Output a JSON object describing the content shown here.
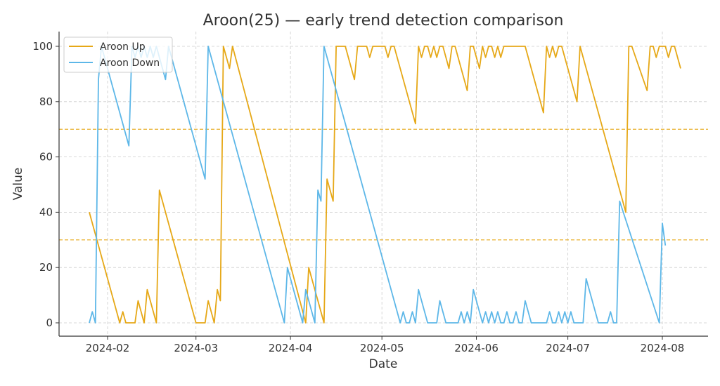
{
  "chart_data": {
    "type": "line",
    "title": "Aroon(25) — early trend detection comparison",
    "xlabel": "Date",
    "ylabel": "Value",
    "ylim": [
      -5,
      105
    ],
    "yticks": [
      0,
      20,
      40,
      60,
      80,
      100
    ],
    "xticks": [
      "2024-02",
      "2024-03",
      "2024-04",
      "2024-05",
      "2024-06",
      "2024-07",
      "2024-08"
    ],
    "xtick_days": [
      31,
      60,
      91,
      121,
      152,
      182,
      213
    ],
    "xlim_days": [
      16,
      229
    ],
    "grid": true,
    "legend_position": "upper left",
    "reference_lines": [
      {
        "y": 70,
        "color": "#E6A817",
        "style": "dashed"
      },
      {
        "y": 30,
        "color": "#E6A817",
        "style": "dashed"
      }
    ],
    "x_unit": "day of year 2024 (0 = 2024-01-01)",
    "series": [
      {
        "name": "Aroon Up",
        "color": "#E6A817",
        "points": [
          [
            25,
            40
          ],
          [
            35,
            0
          ],
          [
            36,
            4
          ],
          [
            37,
            0
          ],
          [
            40,
            0
          ],
          [
            41,
            8
          ],
          [
            43,
            0
          ],
          [
            44,
            12
          ],
          [
            47,
            0
          ],
          [
            48,
            48
          ],
          [
            60,
            0
          ],
          [
            63,
            0
          ],
          [
            64,
            8
          ],
          [
            66,
            0
          ],
          [
            67,
            12
          ],
          [
            68,
            8
          ],
          [
            69,
            100
          ],
          [
            71,
            92
          ],
          [
            72,
            100
          ],
          [
            96,
            0
          ],
          [
            97,
            20
          ],
          [
            102,
            0
          ],
          [
            103,
            52
          ],
          [
            105,
            44
          ],
          [
            106,
            100
          ],
          [
            109,
            100
          ],
          [
            112,
            88
          ],
          [
            113,
            100
          ],
          [
            116,
            100
          ],
          [
            117,
            96
          ],
          [
            118,
            100
          ],
          [
            122,
            100
          ],
          [
            123,
            96
          ],
          [
            124,
            100
          ],
          [
            125,
            100
          ],
          [
            132,
            72
          ],
          [
            133,
            100
          ],
          [
            134,
            96
          ],
          [
            135,
            100
          ],
          [
            136,
            100
          ],
          [
            137,
            96
          ],
          [
            138,
            100
          ],
          [
            139,
            96
          ],
          [
            140,
            100
          ],
          [
            141,
            100
          ],
          [
            143,
            92
          ],
          [
            144,
            100
          ],
          [
            145,
            100
          ],
          [
            149,
            84
          ],
          [
            150,
            100
          ],
          [
            151,
            100
          ],
          [
            153,
            92
          ],
          [
            154,
            100
          ],
          [
            155,
            96
          ],
          [
            156,
            100
          ],
          [
            157,
            100
          ],
          [
            158,
            96
          ],
          [
            159,
            100
          ],
          [
            160,
            96
          ],
          [
            161,
            100
          ],
          [
            168,
            100
          ],
          [
            174,
            76
          ],
          [
            175,
            100
          ],
          [
            176,
            96
          ],
          [
            177,
            100
          ],
          [
            178,
            96
          ],
          [
            179,
            100
          ],
          [
            180,
            100
          ],
          [
            185,
            80
          ],
          [
            186,
            100
          ],
          [
            201,
            40
          ],
          [
            202,
            100
          ],
          [
            203,
            100
          ],
          [
            208,
            84
          ],
          [
            209,
            100
          ],
          [
            210,
            100
          ],
          [
            211,
            96
          ],
          [
            212,
            100
          ],
          [
            214,
            100
          ],
          [
            215,
            96
          ],
          [
            216,
            100
          ],
          [
            217,
            100
          ],
          [
            219,
            92
          ]
        ]
      },
      {
        "name": "Aroon Down",
        "color": "#5DB7E8",
        "points": [
          [
            25,
            0
          ],
          [
            26,
            4
          ],
          [
            27,
            0
          ],
          [
            28,
            88
          ],
          [
            29,
            100
          ],
          [
            38,
            64
          ],
          [
            39,
            100
          ],
          [
            40,
            96
          ],
          [
            41,
            100
          ],
          [
            42,
            96
          ],
          [
            43,
            100
          ],
          [
            44,
            96
          ],
          [
            45,
            100
          ],
          [
            46,
            96
          ],
          [
            47,
            100
          ],
          [
            48,
            96
          ],
          [
            50,
            88
          ],
          [
            51,
            100
          ],
          [
            63,
            52
          ],
          [
            64,
            100
          ],
          [
            89,
            0
          ],
          [
            90,
            20
          ],
          [
            95,
            0
          ],
          [
            96,
            12
          ],
          [
            99,
            0
          ],
          [
            100,
            48
          ],
          [
            101,
            44
          ],
          [
            102,
            100
          ],
          [
            127,
            0
          ],
          [
            128,
            4
          ],
          [
            129,
            0
          ],
          [
            130,
            0
          ],
          [
            131,
            4
          ],
          [
            132,
            0
          ],
          [
            133,
            12
          ],
          [
            136,
            0
          ],
          [
            139,
            0
          ],
          [
            140,
            8
          ],
          [
            142,
            0
          ],
          [
            146,
            0
          ],
          [
            147,
            4
          ],
          [
            148,
            0
          ],
          [
            149,
            4
          ],
          [
            150,
            0
          ],
          [
            151,
            12
          ],
          [
            154,
            0
          ],
          [
            155,
            4
          ],
          [
            156,
            0
          ],
          [
            157,
            4
          ],
          [
            158,
            0
          ],
          [
            159,
            4
          ],
          [
            160,
            0
          ],
          [
            161,
            0
          ],
          [
            162,
            4
          ],
          [
            163,
            0
          ],
          [
            164,
            0
          ],
          [
            165,
            4
          ],
          [
            166,
            0
          ],
          [
            167,
            0
          ],
          [
            168,
            8
          ],
          [
            170,
            0
          ],
          [
            175,
            0
          ],
          [
            176,
            4
          ],
          [
            177,
            0
          ],
          [
            178,
            0
          ],
          [
            179,
            4
          ],
          [
            180,
            0
          ],
          [
            181,
            4
          ],
          [
            182,
            0
          ],
          [
            183,
            4
          ],
          [
            184,
            0
          ],
          [
            187,
            0
          ],
          [
            188,
            16
          ],
          [
            192,
            0
          ],
          [
            195,
            0
          ],
          [
            196,
            4
          ],
          [
            197,
            0
          ],
          [
            198,
            0
          ],
          [
            199,
            44
          ],
          [
            212,
            0
          ],
          [
            213,
            36
          ],
          [
            214,
            28
          ]
        ]
      }
    ]
  },
  "legend": {
    "items": [
      {
        "label": "Aroon Up",
        "color": "#E6A817"
      },
      {
        "label": "Aroon Down",
        "color": "#5DB7E8"
      }
    ]
  }
}
